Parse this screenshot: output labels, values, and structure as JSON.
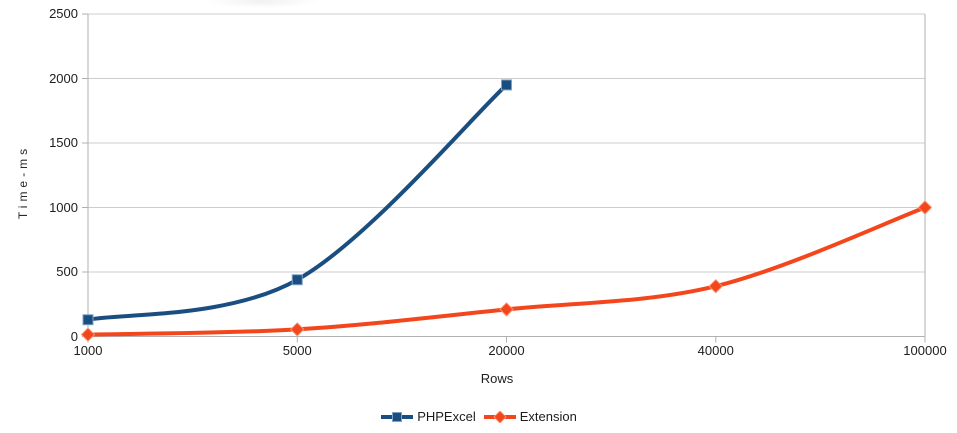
{
  "chart_data": {
    "type": "line",
    "title": "",
    "xlabel": "Rows",
    "ylabel": "Time-ms",
    "categories": [
      "1000",
      "5000",
      "20000",
      "40000",
      "100000"
    ],
    "y_ticks": [
      0,
      500,
      1000,
      1500,
      2000,
      2500
    ],
    "ylim": [
      0,
      2500
    ],
    "grid": "horizontal-only",
    "line_smoothing": "spline",
    "legend_position": "bottom-center",
    "axis_color": "#B1B1B1",
    "grid_color": "#CDCDCD",
    "text_color": "#1D1D1D",
    "background_color": "#FFFFFF",
    "series": [
      {
        "name": "PHPExcel",
        "color": "#1B4E80",
        "marker": "square",
        "marker_edge_color": "#7FA3C8",
        "values": [
          130,
          440,
          1950,
          null,
          null
        ]
      },
      {
        "name": "Extension",
        "color": "#F4461C",
        "marker": "diamond",
        "marker_edge_color": "#F9906F",
        "values": [
          15,
          55,
          210,
          390,
          1000
        ]
      }
    ]
  }
}
